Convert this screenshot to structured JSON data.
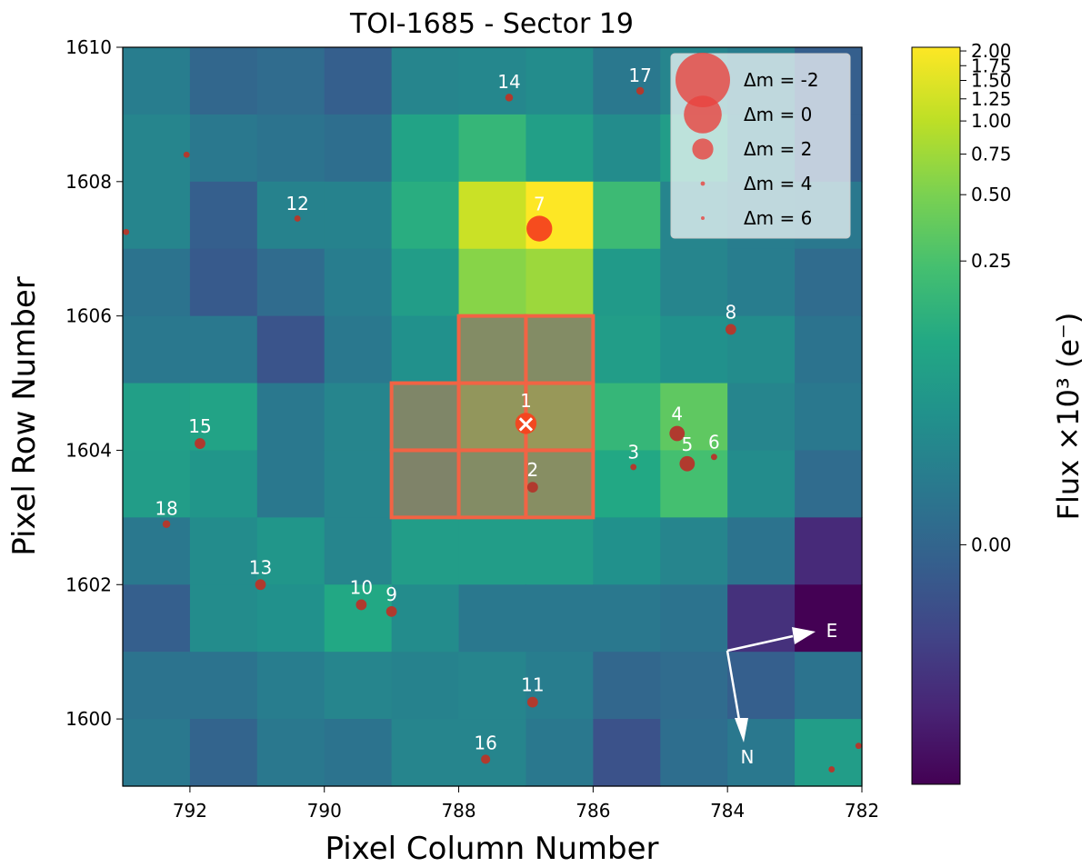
{
  "chart_data": {
    "type": "heatmap",
    "title": "TOI-1685 - Sector 19",
    "xlabel": "Pixel Column Number",
    "ylabel": "Pixel Row Number",
    "xlim": [
      793,
      782
    ],
    "ylim": [
      1599,
      1610
    ],
    "x_ticks": [
      {
        "value": 792,
        "label": "792"
      },
      {
        "value": 790,
        "label": "790"
      },
      {
        "value": 788,
        "label": "788"
      },
      {
        "value": 786,
        "label": "786"
      },
      {
        "value": 784,
        "label": "784"
      },
      {
        "value": 782,
        "label": "782"
      }
    ],
    "y_ticks": [
      {
        "value": 1610,
        "label": "1610"
      },
      {
        "value": 1608,
        "label": "1608"
      },
      {
        "value": 1606,
        "label": "1606"
      },
      {
        "value": 1604,
        "label": "1604"
      },
      {
        "value": 1602,
        "label": "1602"
      },
      {
        "value": 1600,
        "label": "1600"
      }
    ],
    "colorbar": {
      "label": "Flux ×10³ (e⁻)",
      "colormap": "viridis",
      "ticks": [
        {
          "value": 2.0,
          "label": "2.00"
        },
        {
          "value": 1.75,
          "label": "1.75"
        },
        {
          "value": 1.5,
          "label": "1.50"
        },
        {
          "value": 1.25,
          "label": "1.25"
        },
        {
          "value": 1.0,
          "label": "1.00"
        },
        {
          "value": 0.75,
          "label": "0.75"
        },
        {
          "value": 0.5,
          "label": "0.50"
        },
        {
          "value": 0.25,
          "label": "0.25"
        },
        {
          "value": 0.0,
          "label": "0.00"
        }
      ],
      "tick_level": {
        "2.0": 0.995,
        "1.75": 0.975,
        "1.5": 0.955,
        "1.25": 0.93,
        "1.0": 0.9,
        "0.75": 0.855,
        "0.5": 0.8,
        "0.25": 0.71,
        "0.0": 0.325
      }
    },
    "grid_levels": [
      [
        0.42,
        0.33,
        0.35,
        0.3,
        0.45,
        0.46,
        0.48,
        0.4,
        0.45,
        0.42,
        0.3
      ],
      [
        0.45,
        0.4,
        0.38,
        0.36,
        0.58,
        0.66,
        0.56,
        0.48,
        0.55,
        0.43,
        0.3
      ],
      [
        0.45,
        0.3,
        0.44,
        0.44,
        0.62,
        0.92,
        1.0,
        0.68,
        0.45,
        0.42,
        0.4
      ],
      [
        0.38,
        0.28,
        0.35,
        0.42,
        0.55,
        0.82,
        0.85,
        0.54,
        0.45,
        0.42,
        0.35
      ],
      [
        0.4,
        0.4,
        0.26,
        0.4,
        0.5,
        0.62,
        0.62,
        0.55,
        0.5,
        0.48,
        0.38
      ],
      [
        0.56,
        0.58,
        0.4,
        0.45,
        0.58,
        0.7,
        0.72,
        0.66,
        0.75,
        0.45,
        0.4
      ],
      [
        0.55,
        0.52,
        0.4,
        0.45,
        0.55,
        0.62,
        0.64,
        0.6,
        0.7,
        0.48,
        0.35
      ],
      [
        0.4,
        0.48,
        0.52,
        0.45,
        0.55,
        0.55,
        0.55,
        0.5,
        0.45,
        0.38,
        0.12
      ],
      [
        0.3,
        0.48,
        0.5,
        0.6,
        0.48,
        0.4,
        0.4,
        0.4,
        0.38,
        0.14,
        0.0
      ],
      [
        0.38,
        0.38,
        0.42,
        0.45,
        0.44,
        0.45,
        0.42,
        0.33,
        0.35,
        0.3,
        0.38
      ],
      [
        0.4,
        0.32,
        0.4,
        0.38,
        0.45,
        0.45,
        0.4,
        0.25,
        0.36,
        0.4,
        0.55
      ]
    ],
    "aperture_pixels": [
      [
        787.5,
        1605.5
      ],
      [
        786.5,
        1605.5
      ],
      [
        788.5,
        1604.5
      ],
      [
        787.5,
        1604.5
      ],
      [
        786.5,
        1604.5
      ],
      [
        788.5,
        1603.5
      ],
      [
        787.5,
        1603.5
      ],
      [
        786.5,
        1603.5
      ]
    ],
    "aperture_color": "#f26344",
    "target_marker": {
      "label": "×",
      "x": 787.0,
      "y": 1604.4
    },
    "stars": [
      {
        "id": "1",
        "x": 787.0,
        "y": 1604.4,
        "dm": 0.5
      },
      {
        "id": "2",
        "x": 786.9,
        "y": 1603.45,
        "dm": 4
      },
      {
        "id": "3",
        "x": 785.4,
        "y": 1603.75,
        "dm": 5.5
      },
      {
        "id": "4",
        "x": 784.75,
        "y": 1604.25,
        "dm": 2.5
      },
      {
        "id": "5",
        "x": 784.6,
        "y": 1603.8,
        "dm": 2.5
      },
      {
        "id": "6",
        "x": 784.2,
        "y": 1603.9,
        "dm": 5.5
      },
      {
        "id": "7",
        "x": 786.8,
        "y": 1607.3,
        "dm": -1
      },
      {
        "id": "8",
        "x": 783.95,
        "y": 1605.8,
        "dm": 4
      },
      {
        "id": "9",
        "x": 789.0,
        "y": 1601.6,
        "dm": 4
      },
      {
        "id": "10",
        "x": 789.45,
        "y": 1601.7,
        "dm": 4
      },
      {
        "id": "11",
        "x": 786.9,
        "y": 1600.25,
        "dm": 4
      },
      {
        "id": "12",
        "x": 790.4,
        "y": 1607.45,
        "dm": 5.5
      },
      {
        "id": "13",
        "x": 790.95,
        "y": 1602.0,
        "dm": 4
      },
      {
        "id": "14",
        "x": 787.25,
        "y": 1609.25,
        "dm": 5
      },
      {
        "id": "15",
        "x": 791.85,
        "y": 1604.1,
        "dm": 4
      },
      {
        "id": "16",
        "x": 787.6,
        "y": 1599.4,
        "dm": 4.5
      },
      {
        "id": "17",
        "x": 785.3,
        "y": 1609.35,
        "dm": 5
      },
      {
        "id": "18",
        "x": 792.35,
        "y": 1602.9,
        "dm": 5
      },
      {
        "id": "",
        "x": 792.05,
        "y": 1608.4,
        "dm": 5.5
      },
      {
        "id": "",
        "x": 792.95,
        "y": 1607.25,
        "dm": 5.5
      },
      {
        "id": "",
        "x": 782.45,
        "y": 1599.25,
        "dm": 5.5
      },
      {
        "id": "",
        "x": 782.05,
        "y": 1599.6,
        "dm": 5.5
      }
    ],
    "star_color": "#b03a2e",
    "legend": {
      "position": "top-right",
      "entries": [
        {
          "label": "Δm =  -2",
          "dm": -2
        },
        {
          "label": "Δm =  0",
          "dm": 0
        },
        {
          "label": "Δm =  2",
          "dm": 2
        },
        {
          "label": "Δm =  4",
          "dm": 4
        },
        {
          "label": "Δm =  6",
          "dm": 6
        }
      ],
      "marker_color": "#e8433e"
    },
    "compass": {
      "east_label": "E",
      "north_label": "N"
    }
  }
}
